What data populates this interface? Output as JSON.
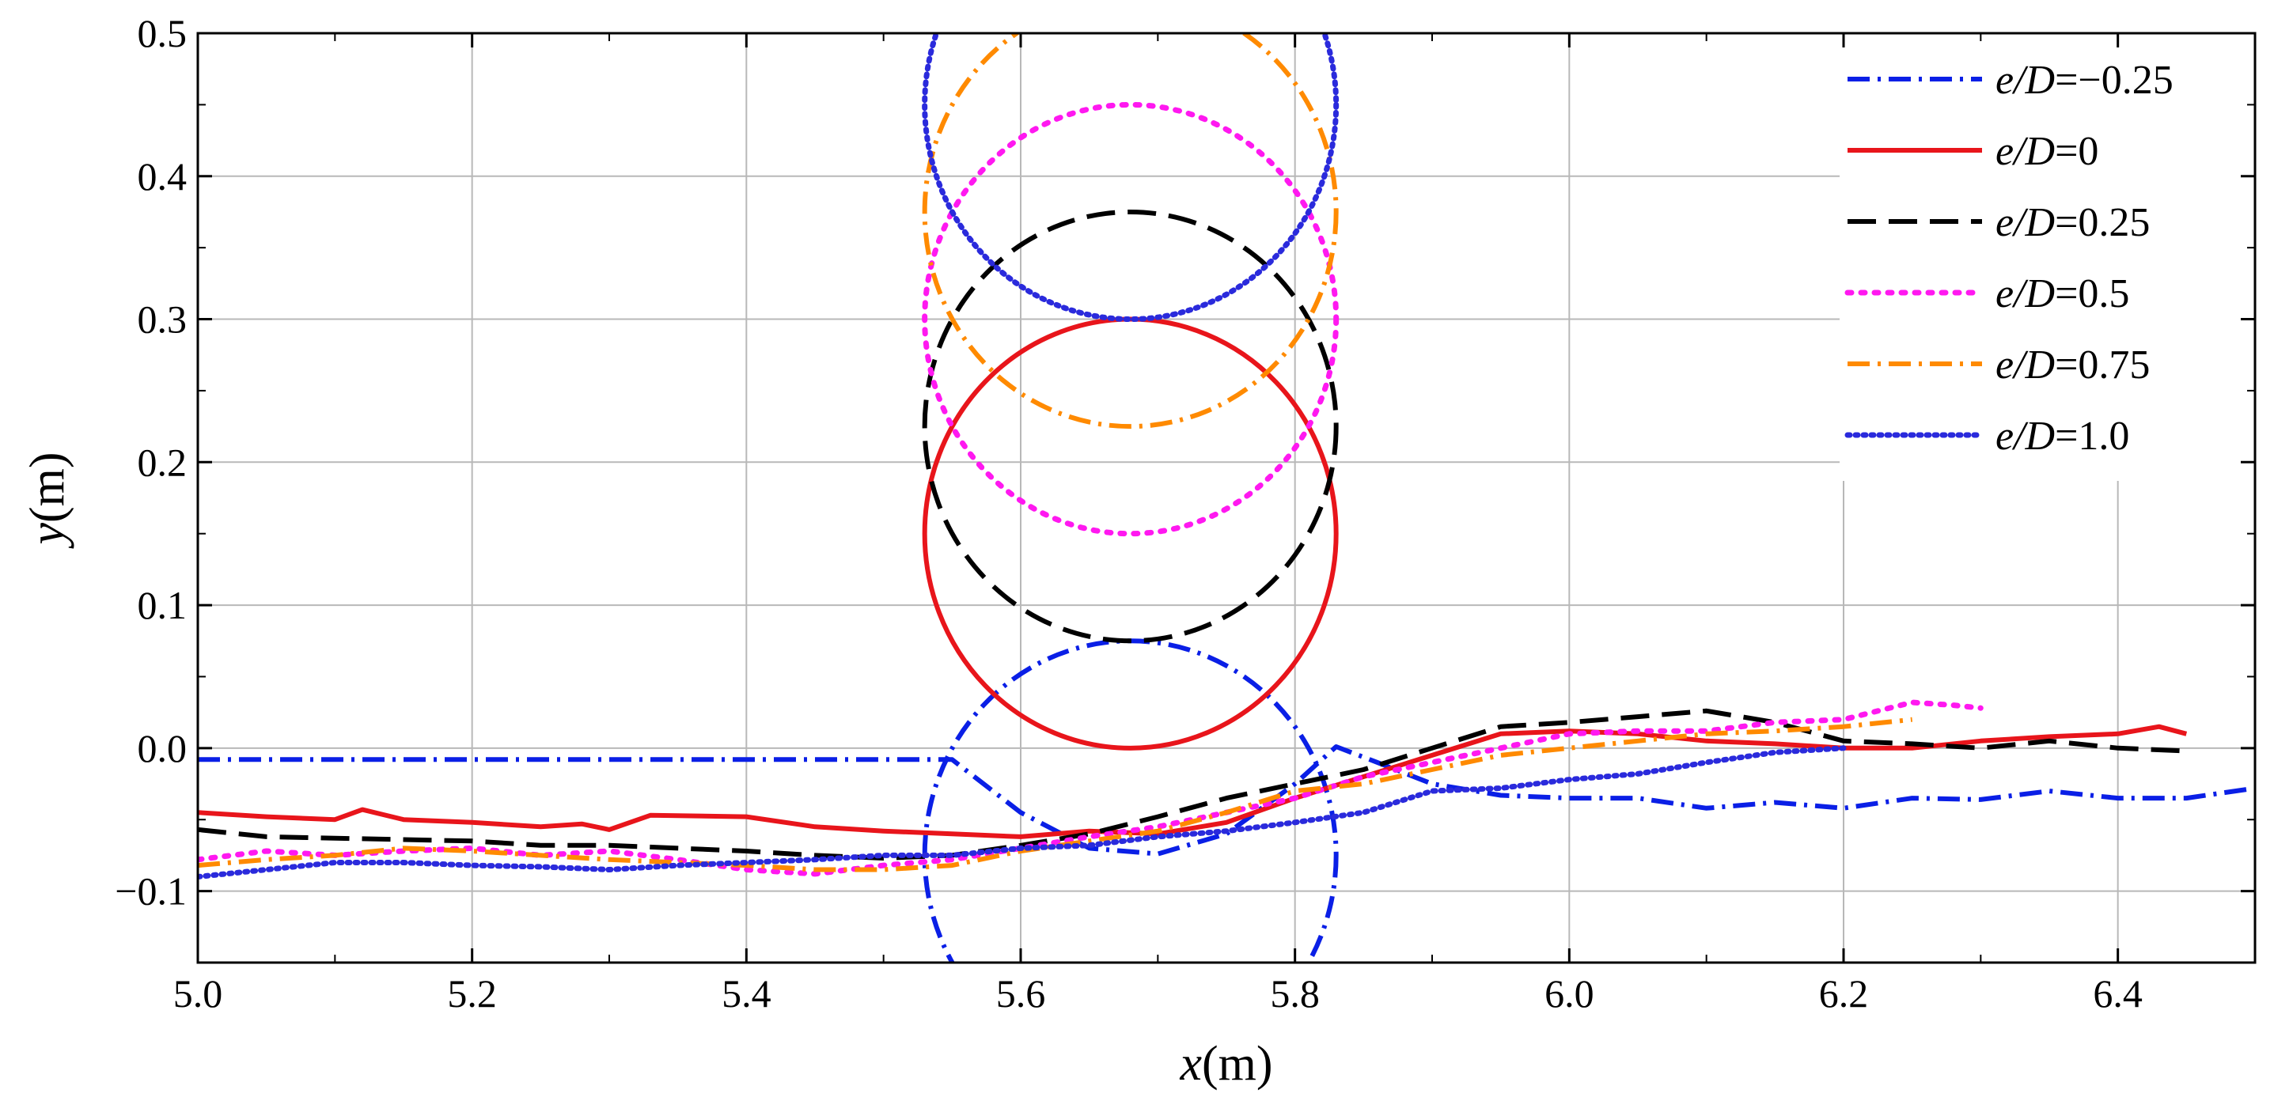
{
  "chart_data": {
    "type": "line",
    "title": "",
    "xlabel": "x(m)",
    "ylabel": "y(m)",
    "xlabel_parts": {
      "var": "x",
      "unit": "(m)"
    },
    "ylabel_parts": {
      "var": "y",
      "unit": "(m)"
    },
    "xlim": [
      5.0,
      6.5
    ],
    "ylim": [
      -0.15,
      0.5
    ],
    "grid": true,
    "legend_position": "top-right",
    "x_ticks": [
      {
        "value": 5.0,
        "label": "5.0"
      },
      {
        "value": 5.2,
        "label": "5.2"
      },
      {
        "value": 5.4,
        "label": "5.4"
      },
      {
        "value": 5.6,
        "label": "5.6"
      },
      {
        "value": 5.8,
        "label": "5.8"
      },
      {
        "value": 6.0,
        "label": "6.0"
      },
      {
        "value": 6.2,
        "label": "6.2"
      },
      {
        "value": 6.4,
        "label": "6.4"
      }
    ],
    "y_ticks": [
      {
        "value": -0.1,
        "label": "−0.1"
      },
      {
        "value": 0.0,
        "label": "0.0"
      },
      {
        "value": 0.1,
        "label": "0.1"
      },
      {
        "value": 0.2,
        "label": "0.2"
      },
      {
        "value": 0.3,
        "label": "0.3"
      },
      {
        "value": 0.4,
        "label": "0.4"
      },
      {
        "value": 0.5,
        "label": "0.5"
      }
    ],
    "series": [
      {
        "name": "e/D=−0.25",
        "legend_var": "e/D",
        "legend_value": "=−0.25",
        "color": "#0a1fe6",
        "style": "dashdot",
        "cylinder": {
          "cx": 5.68,
          "cy": -0.075,
          "r": 0.15
        },
        "bed": [
          [
            5.0,
            -0.008
          ],
          [
            5.55,
            -0.008
          ],
          [
            5.6,
            -0.045
          ],
          [
            5.65,
            -0.07
          ],
          [
            5.7,
            -0.074
          ],
          [
            5.75,
            -0.06
          ],
          [
            5.8,
            -0.025
          ],
          [
            5.83,
            0.001
          ],
          [
            5.86,
            -0.01
          ],
          [
            5.9,
            -0.025
          ],
          [
            5.95,
            -0.033
          ],
          [
            6.0,
            -0.035
          ],
          [
            6.05,
            -0.035
          ],
          [
            6.1,
            -0.042
          ],
          [
            6.15,
            -0.038
          ],
          [
            6.2,
            -0.042
          ],
          [
            6.25,
            -0.035
          ],
          [
            6.3,
            -0.036
          ],
          [
            6.35,
            -0.03
          ],
          [
            6.4,
            -0.035
          ],
          [
            6.45,
            -0.035
          ],
          [
            6.5,
            -0.028
          ]
        ]
      },
      {
        "name": "e/D=0",
        "legend_var": "e/D",
        "legend_value": "=0",
        "color": "#e8151b",
        "style": "solid",
        "cylinder": {
          "cx": 5.68,
          "cy": 0.15,
          "r": 0.15
        },
        "bed": [
          [
            5.0,
            -0.045
          ],
          [
            5.05,
            -0.048
          ],
          [
            5.1,
            -0.05
          ],
          [
            5.12,
            -0.043
          ],
          [
            5.15,
            -0.05
          ],
          [
            5.2,
            -0.052
          ],
          [
            5.25,
            -0.055
          ],
          [
            5.28,
            -0.053
          ],
          [
            5.3,
            -0.057
          ],
          [
            5.33,
            -0.047
          ],
          [
            5.4,
            -0.048
          ],
          [
            5.45,
            -0.055
          ],
          [
            5.5,
            -0.058
          ],
          [
            5.55,
            -0.06
          ],
          [
            5.6,
            -0.062
          ],
          [
            5.65,
            -0.058
          ],
          [
            5.7,
            -0.06
          ],
          [
            5.75,
            -0.052
          ],
          [
            5.8,
            -0.035
          ],
          [
            5.85,
            -0.02
          ],
          [
            5.9,
            -0.005
          ],
          [
            5.95,
            0.01
          ],
          [
            6.0,
            0.012
          ],
          [
            6.05,
            0.01
          ],
          [
            6.1,
            0.005
          ],
          [
            6.15,
            0.003
          ],
          [
            6.2,
            0.0
          ],
          [
            6.25,
            0.0
          ],
          [
            6.3,
            0.005
          ],
          [
            6.35,
            0.008
          ],
          [
            6.4,
            0.01
          ],
          [
            6.43,
            0.015
          ],
          [
            6.45,
            0.01
          ]
        ]
      },
      {
        "name": "e/D=0.25",
        "legend_var": "e/D",
        "legend_value": "=0.25",
        "color": "#000000",
        "style": "dashed",
        "cylinder": {
          "cx": 5.68,
          "cy": 0.225,
          "r": 0.15
        },
        "bed": [
          [
            5.0,
            -0.057
          ],
          [
            5.05,
            -0.062
          ],
          [
            5.1,
            -0.063
          ],
          [
            5.15,
            -0.064
          ],
          [
            5.2,
            -0.065
          ],
          [
            5.25,
            -0.068
          ],
          [
            5.3,
            -0.068
          ],
          [
            5.35,
            -0.07
          ],
          [
            5.4,
            -0.072
          ],
          [
            5.45,
            -0.075
          ],
          [
            5.5,
            -0.077
          ],
          [
            5.55,
            -0.075
          ],
          [
            5.6,
            -0.068
          ],
          [
            5.65,
            -0.06
          ],
          [
            5.7,
            -0.048
          ],
          [
            5.75,
            -0.035
          ],
          [
            5.8,
            -0.025
          ],
          [
            5.85,
            -0.015
          ],
          [
            5.9,
            0.0
          ],
          [
            5.95,
            0.015
          ],
          [
            6.0,
            0.018
          ],
          [
            6.05,
            0.022
          ],
          [
            6.1,
            0.026
          ],
          [
            6.15,
            0.018
          ],
          [
            6.2,
            0.005
          ],
          [
            6.25,
            0.003
          ],
          [
            6.3,
            0.0
          ],
          [
            6.35,
            0.005
          ],
          [
            6.4,
            0.0
          ],
          [
            6.45,
            -0.002
          ]
        ]
      },
      {
        "name": "e/D=0.5",
        "legend_var": "e/D",
        "legend_value": "=0.5",
        "color": "#ff18f0",
        "style": "dotted",
        "cylinder": {
          "cx": 5.68,
          "cy": 0.3,
          "r": 0.15
        },
        "bed": [
          [
            5.0,
            -0.078
          ],
          [
            5.05,
            -0.072
          ],
          [
            5.1,
            -0.075
          ],
          [
            5.15,
            -0.072
          ],
          [
            5.2,
            -0.07
          ],
          [
            5.25,
            -0.075
          ],
          [
            5.3,
            -0.072
          ],
          [
            5.35,
            -0.078
          ],
          [
            5.4,
            -0.085
          ],
          [
            5.45,
            -0.088
          ],
          [
            5.5,
            -0.082
          ],
          [
            5.55,
            -0.078
          ],
          [
            5.6,
            -0.07
          ],
          [
            5.65,
            -0.062
          ],
          [
            5.7,
            -0.055
          ],
          [
            5.75,
            -0.045
          ],
          [
            5.8,
            -0.035
          ],
          [
            5.85,
            -0.02
          ],
          [
            5.9,
            -0.01
          ],
          [
            5.95,
            0.0
          ],
          [
            6.0,
            0.01
          ],
          [
            6.05,
            0.012
          ],
          [
            6.1,
            0.012
          ],
          [
            6.15,
            0.018
          ],
          [
            6.2,
            0.02
          ],
          [
            6.25,
            0.032
          ],
          [
            6.28,
            0.03
          ],
          [
            6.3,
            0.028
          ]
        ]
      },
      {
        "name": "e/D=0.75",
        "legend_var": "e/D",
        "legend_value": "=0.75",
        "color": "#ff8a00",
        "style": "dashdot",
        "cylinder": {
          "cx": 5.68,
          "cy": 0.375,
          "r": 0.15
        },
        "bed": [
          [
            5.0,
            -0.082
          ],
          [
            5.05,
            -0.078
          ],
          [
            5.1,
            -0.075
          ],
          [
            5.15,
            -0.07
          ],
          [
            5.2,
            -0.072
          ],
          [
            5.25,
            -0.075
          ],
          [
            5.3,
            -0.078
          ],
          [
            5.35,
            -0.08
          ],
          [
            5.4,
            -0.082
          ],
          [
            5.45,
            -0.085
          ],
          [
            5.5,
            -0.085
          ],
          [
            5.55,
            -0.082
          ],
          [
            5.6,
            -0.072
          ],
          [
            5.65,
            -0.065
          ],
          [
            5.7,
            -0.058
          ],
          [
            5.75,
            -0.045
          ],
          [
            5.8,
            -0.03
          ],
          [
            5.85,
            -0.025
          ],
          [
            5.9,
            -0.015
          ],
          [
            5.95,
            -0.005
          ],
          [
            6.0,
            0.0
          ],
          [
            6.05,
            0.005
          ],
          [
            6.1,
            0.01
          ],
          [
            6.15,
            0.012
          ],
          [
            6.2,
            0.015
          ],
          [
            6.25,
            0.02
          ]
        ]
      },
      {
        "name": "e/D=1.0",
        "legend_var": "e/D",
        "legend_value": "=1.0",
        "color": "#2a2adc",
        "style": "dotted-fine",
        "cylinder": {
          "cx": 5.68,
          "cy": 0.45,
          "r": 0.15
        },
        "bed": [
          [
            5.0,
            -0.09
          ],
          [
            5.05,
            -0.085
          ],
          [
            5.1,
            -0.08
          ],
          [
            5.15,
            -0.08
          ],
          [
            5.2,
            -0.082
          ],
          [
            5.25,
            -0.083
          ],
          [
            5.3,
            -0.085
          ],
          [
            5.35,
            -0.082
          ],
          [
            5.4,
            -0.08
          ],
          [
            5.45,
            -0.078
          ],
          [
            5.5,
            -0.075
          ],
          [
            5.55,
            -0.075
          ],
          [
            5.6,
            -0.07
          ],
          [
            5.65,
            -0.068
          ],
          [
            5.7,
            -0.062
          ],
          [
            5.75,
            -0.058
          ],
          [
            5.8,
            -0.052
          ],
          [
            5.85,
            -0.045
          ],
          [
            5.9,
            -0.03
          ],
          [
            5.95,
            -0.028
          ],
          [
            6.0,
            -0.022
          ],
          [
            6.05,
            -0.018
          ],
          [
            6.1,
            -0.01
          ],
          [
            6.15,
            -0.003
          ],
          [
            6.2,
            0.0
          ]
        ]
      }
    ]
  }
}
